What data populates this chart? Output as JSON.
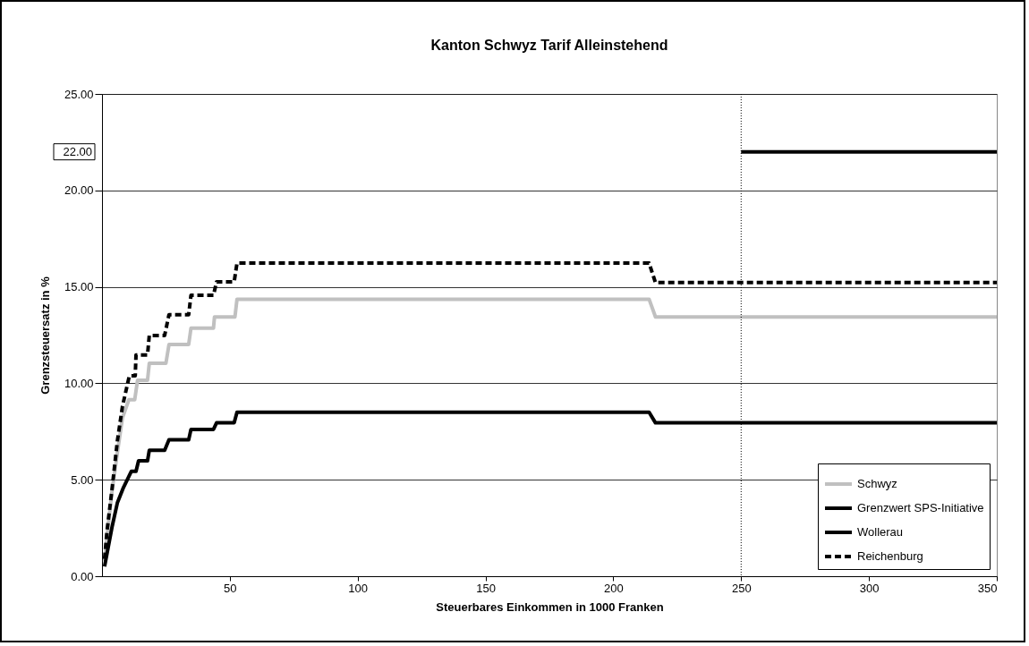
{
  "chart_data": {
    "type": "line",
    "title": "Kanton Schwyz Tarif Alleinstehend",
    "xlabel": "Steuerbares Einkommen in 1000 Franken",
    "ylabel": "Grenzsteuersatz in %",
    "xlim": [
      0,
      350
    ],
    "xticks": [
      50,
      100,
      150,
      200,
      250,
      300,
      350
    ],
    "ylim": [
      0,
      25
    ],
    "yticks": [
      {
        "value": 0,
        "label": "0.00"
      },
      {
        "value": 5,
        "label": "5.00"
      },
      {
        "value": 10,
        "label": "10.00"
      },
      {
        "value": 15,
        "label": "15.00"
      },
      {
        "value": 20,
        "label": "20.00"
      },
      {
        "value": 25,
        "label": "25.00"
      }
    ],
    "grid": "y",
    "legend": "bottom right",
    "series": [
      {
        "name": "Schwyz",
        "color": "#c0c0c0",
        "line_style": "solid",
        "x": [
          1,
          2,
          4,
          6,
          8,
          10.5,
          12.8,
          13.9,
          17.8,
          18.5,
          25,
          26.2,
          33.9,
          34.8,
          43.6,
          44,
          52,
          52.8,
          214,
          216.5,
          350
        ],
        "values": [
          0.8,
          2.1,
          4.5,
          6.4,
          8.2,
          9.15,
          9.15,
          10.16,
          10.16,
          11.04,
          11.04,
          12.01,
          12.01,
          12.86,
          12.86,
          13.44,
          13.44,
          14.36,
          14.36,
          13.44,
          13.44
        ]
      },
      {
        "name": "Grenzwert SPS-Initiative",
        "color": "#000000",
        "line_style": "solid",
        "x": [
          250,
          350
        ],
        "values": [
          22,
          22
        ]
      },
      {
        "name": "Wollerau",
        "color": "#000000",
        "line_style": "solid",
        "x": [
          1,
          2,
          4,
          6,
          8.4,
          9.8,
          11.5,
          13.3,
          14.3,
          17.8,
          18.5,
          24.5,
          26.2,
          33.9,
          34.8,
          43.6,
          44.8,
          51.7,
          52.8,
          214,
          216.5,
          350
        ],
        "values": [
          0.5,
          1.2,
          2.6,
          3.8,
          4.6,
          4.98,
          5.44,
          5.44,
          5.98,
          5.98,
          6.53,
          6.53,
          7.07,
          7.07,
          7.61,
          7.61,
          7.95,
          7.95,
          8.5,
          8.5,
          7.95,
          7.95
        ]
      },
      {
        "name": "Reichenburg",
        "color": "#000000",
        "line_style": "dashed",
        "x": [
          1,
          2,
          4,
          6,
          8,
          10.7,
          13,
          13.3,
          17.8,
          18.5,
          24.5,
          26.2,
          33.9,
          34.8,
          43.6,
          44.8,
          51.7,
          52.8,
          214,
          216.5,
          350
        ],
        "values": [
          0.9,
          2.4,
          4.6,
          7.0,
          8.8,
          10.39,
          10.39,
          11.47,
          11.47,
          12.48,
          12.48,
          13.56,
          13.56,
          14.56,
          14.56,
          15.26,
          15.26,
          16.23,
          16.23,
          15.22,
          15.22
        ]
      }
    ],
    "ref_lines": [
      {
        "axis": "x",
        "value": 250,
        "color": "#000000",
        "line_style": "dotted"
      }
    ],
    "annotations": [
      "22.00"
    ]
  }
}
